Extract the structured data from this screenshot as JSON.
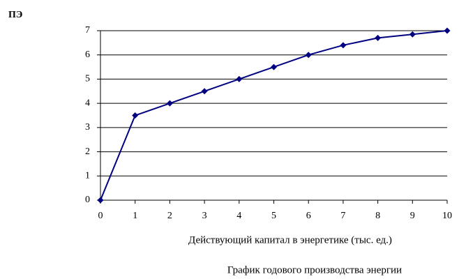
{
  "chart_data": {
    "type": "line",
    "y_label": "ПЭ",
    "x_label": "Действующий капитал в энергетике (тыс. ед.)",
    "caption": "График годового производства энергии",
    "x": [
      0,
      1,
      2,
      3,
      4,
      5,
      6,
      7,
      8,
      9,
      10
    ],
    "values": [
      0,
      3.5,
      4,
      4.5,
      5,
      5.5,
      6,
      6.4,
      6.7,
      6.85,
      7
    ],
    "color": "#000080",
    "xlim": [
      0,
      10
    ],
    "xticks": [
      0,
      1,
      2,
      3,
      4,
      5,
      6,
      7,
      8,
      9,
      10
    ],
    "ylim": [
      0,
      7
    ],
    "yticks": [
      0,
      1,
      2,
      3,
      4,
      5,
      6,
      7
    ],
    "grid": true
  }
}
